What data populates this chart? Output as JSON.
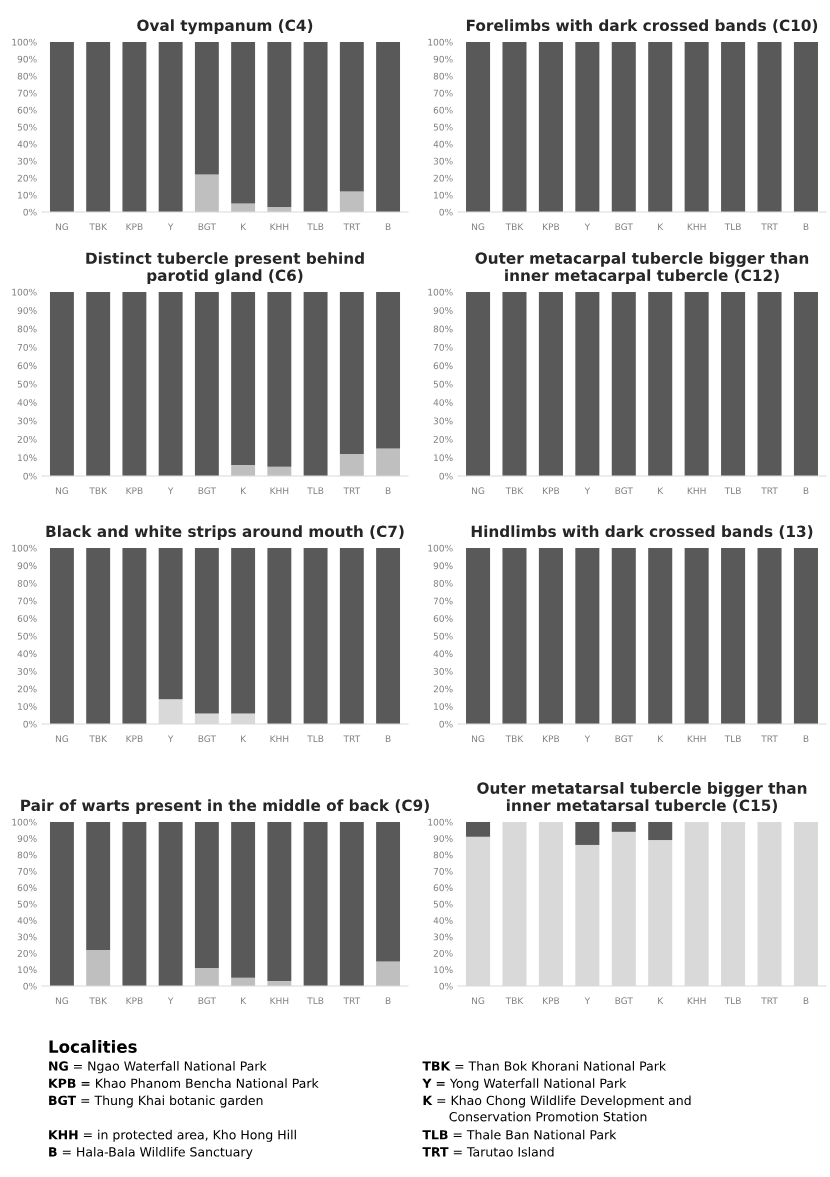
{
  "chart_data": [
    {
      "type": "bar",
      "title": "Oval tympanum (C4)",
      "stacked": true,
      "categories": [
        "NG",
        "TBK",
        "KPB",
        "Y",
        "BGT",
        "K",
        "KHH",
        "TLB",
        "TRT",
        "B"
      ],
      "ylim": [
        0,
        100
      ],
      "yticks": [
        {
          "value": 0,
          "label": "0%"
        },
        {
          "value": 10,
          "label": "10%"
        },
        {
          "value": 20,
          "label": "20%"
        },
        {
          "value": 30,
          "label": "30%"
        },
        {
          "value": 40,
          "label": "40%"
        },
        {
          "value": 50,
          "label": "50%"
        },
        {
          "value": 60,
          "label": "60%"
        },
        {
          "value": 70,
          "label": "70%"
        },
        {
          "value": 80,
          "label": "80%"
        },
        {
          "value": 90,
          "label": "90%"
        },
        {
          "value": 100,
          "label": "100%"
        }
      ],
      "grid": false,
      "legend": false,
      "series": [
        {
          "color": "#bfbfbf",
          "values": [
            0,
            0,
            0,
            0,
            22,
            5,
            3,
            0,
            12,
            0
          ]
        },
        {
          "color": "#595959",
          "values": [
            100,
            100,
            100,
            100,
            78,
            95,
            97,
            100,
            88,
            100
          ]
        }
      ]
    },
    {
      "type": "bar",
      "title": "Forelimbs with dark crossed bands (C10)",
      "stacked": true,
      "categories": [
        "NG",
        "TBK",
        "KPB",
        "Y",
        "BGT",
        "K",
        "KHH",
        "TLB",
        "TRT",
        "B"
      ],
      "ylim": [
        0,
        100
      ],
      "yticks": [
        {
          "value": 0,
          "label": "0%"
        },
        {
          "value": 10,
          "label": "10%"
        },
        {
          "value": 20,
          "label": "20%"
        },
        {
          "value": 30,
          "label": "30%"
        },
        {
          "value": 40,
          "label": "40%"
        },
        {
          "value": 50,
          "label": "50%"
        },
        {
          "value": 60,
          "label": "60%"
        },
        {
          "value": 70,
          "label": "70%"
        },
        {
          "value": 80,
          "label": "80%"
        },
        {
          "value": 90,
          "label": "90%"
        },
        {
          "value": 100,
          "label": "100%"
        }
      ],
      "grid": false,
      "legend": false,
      "series": [
        {
          "color": "#595959",
          "values": [
            100,
            100,
            100,
            100,
            100,
            100,
            100,
            100,
            100,
            100
          ]
        }
      ]
    },
    {
      "type": "bar",
      "title": "Distinct tubercle present behind\nparotid gland (C6)",
      "stacked": true,
      "categories": [
        "NG",
        "TBK",
        "KPB",
        "Y",
        "BGT",
        "K",
        "KHH",
        "TLB",
        "TRT",
        "B"
      ],
      "ylim": [
        0,
        100
      ],
      "yticks": [
        {
          "value": 0,
          "label": "0%"
        },
        {
          "value": 10,
          "label": "10%"
        },
        {
          "value": 20,
          "label": "20%"
        },
        {
          "value": 30,
          "label": "30%"
        },
        {
          "value": 40,
          "label": "40%"
        },
        {
          "value": 50,
          "label": "50%"
        },
        {
          "value": 60,
          "label": "60%"
        },
        {
          "value": 70,
          "label": "70%"
        },
        {
          "value": 80,
          "label": "80%"
        },
        {
          "value": 90,
          "label": "90%"
        },
        {
          "value": 100,
          "label": "100%"
        }
      ],
      "grid": false,
      "legend": false,
      "series": [
        {
          "color": "#bfbfbf",
          "values": [
            0,
            0,
            0,
            0,
            0,
            6,
            5,
            0,
            12,
            15
          ]
        },
        {
          "color": "#595959",
          "values": [
            100,
            100,
            100,
            100,
            100,
            94,
            95,
            100,
            88,
            85
          ]
        }
      ]
    },
    {
      "type": "bar",
      "title": "Outer metacarpal tubercle bigger than\ninner metacarpal tubercle (C12)",
      "stacked": true,
      "categories": [
        "NG",
        "TBK",
        "KPB",
        "Y",
        "BGT",
        "K",
        "KHH",
        "TLB",
        "TRT",
        "B"
      ],
      "ylim": [
        0,
        100
      ],
      "yticks": [
        {
          "value": 0,
          "label": "0%"
        },
        {
          "value": 10,
          "label": "10%"
        },
        {
          "value": 20,
          "label": "20%"
        },
        {
          "value": 30,
          "label": "30%"
        },
        {
          "value": 40,
          "label": "40%"
        },
        {
          "value": 50,
          "label": "50%"
        },
        {
          "value": 60,
          "label": "60%"
        },
        {
          "value": 70,
          "label": "70%"
        },
        {
          "value": 80,
          "label": "80%"
        },
        {
          "value": 90,
          "label": "90%"
        },
        {
          "value": 100,
          "label": "100%"
        }
      ],
      "grid": false,
      "legend": false,
      "series": [
        {
          "color": "#595959",
          "values": [
            100,
            100,
            100,
            100,
            100,
            100,
            100,
            100,
            100,
            100
          ]
        }
      ]
    },
    {
      "type": "bar",
      "title": "Black and white strips around mouth (C7)",
      "stacked": true,
      "categories": [
        "NG",
        "TBK",
        "KPB",
        "Y",
        "BGT",
        "K",
        "KHH",
        "TLB",
        "TRT",
        "B"
      ],
      "ylim": [
        0,
        100
      ],
      "yticks": [
        {
          "value": 0,
          "label": "0%"
        },
        {
          "value": 10,
          "label": "10%"
        },
        {
          "value": 20,
          "label": "20%"
        },
        {
          "value": 30,
          "label": "30%"
        },
        {
          "value": 40,
          "label": "40%"
        },
        {
          "value": 50,
          "label": "50%"
        },
        {
          "value": 60,
          "label": "60%"
        },
        {
          "value": 70,
          "label": "70%"
        },
        {
          "value": 80,
          "label": "80%"
        },
        {
          "value": 90,
          "label": "90%"
        },
        {
          "value": 100,
          "label": "100%"
        }
      ],
      "grid": false,
      "legend": false,
      "series": [
        {
          "color": "#d9d9d9",
          "values": [
            0,
            0,
            0,
            14,
            6,
            6,
            0,
            0,
            0,
            0
          ]
        },
        {
          "color": "#595959",
          "values": [
            100,
            100,
            100,
            86,
            94,
            94,
            100,
            100,
            100,
            100
          ]
        }
      ]
    },
    {
      "type": "bar",
      "title": "Hindlimbs with dark crossed bands (13)",
      "stacked": true,
      "categories": [
        "NG",
        "TBK",
        "KPB",
        "Y",
        "BGT",
        "K",
        "KHH",
        "TLB",
        "TRT",
        "B"
      ],
      "ylim": [
        0,
        100
      ],
      "yticks": [
        {
          "value": 0,
          "label": "0%"
        },
        {
          "value": 10,
          "label": "10%"
        },
        {
          "value": 20,
          "label": "20%"
        },
        {
          "value": 30,
          "label": "30%"
        },
        {
          "value": 40,
          "label": "40%"
        },
        {
          "value": 50,
          "label": "50%"
        },
        {
          "value": 60,
          "label": "60%"
        },
        {
          "value": 70,
          "label": "70%"
        },
        {
          "value": 80,
          "label": "80%"
        },
        {
          "value": 90,
          "label": "90%"
        },
        {
          "value": 100,
          "label": "100%"
        }
      ],
      "grid": false,
      "legend": false,
      "series": [
        {
          "color": "#595959",
          "values": [
            100,
            100,
            100,
            100,
            100,
            100,
            100,
            100,
            100,
            100
          ]
        }
      ]
    },
    {
      "type": "bar",
      "title": "Pair of warts present in the middle of back (C9)",
      "stacked": true,
      "categories": [
        "NG",
        "TBK",
        "KPB",
        "Y",
        "BGT",
        "K",
        "KHH",
        "TLB",
        "TRT",
        "B"
      ],
      "ylim": [
        0,
        100
      ],
      "yticks": [
        {
          "value": 0,
          "label": "0%"
        },
        {
          "value": 10,
          "label": "10%"
        },
        {
          "value": 20,
          "label": "20%"
        },
        {
          "value": 30,
          "label": "30%"
        },
        {
          "value": 40,
          "label": "40%"
        },
        {
          "value": 50,
          "label": "50%"
        },
        {
          "value": 60,
          "label": "60%"
        },
        {
          "value": 70,
          "label": "70%"
        },
        {
          "value": 80,
          "label": "80%"
        },
        {
          "value": 90,
          "label": "90%"
        },
        {
          "value": 100,
          "label": "100%"
        }
      ],
      "grid": false,
      "legend": false,
      "series": [
        {
          "color": "#bfbfbf",
          "values": [
            0,
            22,
            0,
            0,
            11,
            5,
            3,
            0,
            0,
            15
          ]
        },
        {
          "color": "#595959",
          "values": [
            100,
            78,
            100,
            100,
            89,
            95,
            97,
            100,
            100,
            85
          ]
        }
      ]
    },
    {
      "type": "bar",
      "title": "Outer metatarsal tubercle bigger than\ninner metatarsal tubercle (C15)",
      "stacked": true,
      "categories": [
        "NG",
        "TBK",
        "KPB",
        "Y",
        "BGT",
        "K",
        "KHH",
        "TLB",
        "TRT",
        "B"
      ],
      "ylim": [
        0,
        100
      ],
      "yticks": [
        {
          "value": 0,
          "label": "0%"
        },
        {
          "value": 10,
          "label": "10%"
        },
        {
          "value": 20,
          "label": "20%"
        },
        {
          "value": 30,
          "label": "30%"
        },
        {
          "value": 40,
          "label": "40%"
        },
        {
          "value": 50,
          "label": "50%"
        },
        {
          "value": 60,
          "label": "60%"
        },
        {
          "value": 70,
          "label": "70%"
        },
        {
          "value": 80,
          "label": "80%"
        },
        {
          "value": 90,
          "label": "90%"
        },
        {
          "value": 100,
          "label": "100%"
        }
      ],
      "grid": false,
      "legend": false,
      "series": [
        {
          "color": "#d9d9d9",
          "values": [
            91,
            100,
            100,
            86,
            94,
            89,
            100,
            100,
            100,
            100
          ]
        },
        {
          "color": "#595959",
          "values": [
            9,
            0,
            0,
            14,
            6,
            11,
            0,
            0,
            0,
            0
          ]
        }
      ]
    },
    {
      "type": "other",
      "title": "Localities",
      "annotations": [
        "NG = Ngao Waterfall National Park",
        "TBK = Than Bok Khorani National Park",
        "KPB = Khao Phanom Bencha National Park",
        "Y = Yong Waterfall National Park",
        "BGT = Thung Khai botanic garden",
        "K = Khao Chong Wildlife Development and\nConservation Promotion Station",
        "KHH = in protected area, Kho Hong Hill",
        "TLB = Thale Ban National Park",
        "B = Hala-Bala Wildlife Sanctuary",
        "TRT = Tarutao Island"
      ]
    }
  ]
}
